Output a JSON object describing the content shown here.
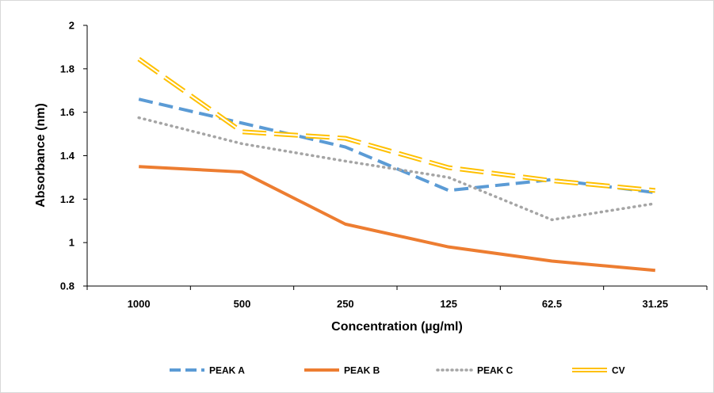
{
  "chart_data": {
    "type": "line",
    "title": "",
    "xlabel": "Concentration (µg/ml)",
    "ylabel": "Absorbance (nm)",
    "categories": [
      "1000",
      "500",
      "250",
      "125",
      "62.5",
      "31.25"
    ],
    "ylim": [
      0.8,
      2
    ],
    "yticks": [
      "0.8",
      "1",
      "1.2",
      "1.4",
      "1.6",
      "1.8",
      "2"
    ],
    "grid": false,
    "legend_position": "bottom",
    "series": [
      {
        "name": "PEAK A",
        "values": [
          1.66,
          1.55,
          1.44,
          1.24,
          1.29,
          1.23
        ],
        "color": "#5B9BD5",
        "style": "dashed"
      },
      {
        "name": "PEAK B",
        "values": [
          1.35,
          1.325,
          1.085,
          0.98,
          0.915,
          0.872
        ],
        "color": "#ED7D31",
        "style": "solid"
      },
      {
        "name": "PEAK C",
        "values": [
          1.575,
          1.455,
          1.375,
          1.3,
          1.105,
          1.18
        ],
        "color": "#A5A5A5",
        "style": "dotted"
      },
      {
        "name": "CV",
        "values": [
          1.845,
          1.51,
          1.48,
          1.345,
          1.285,
          1.24
        ],
        "color": "#FFC000",
        "style": "double-dashed"
      }
    ]
  }
}
